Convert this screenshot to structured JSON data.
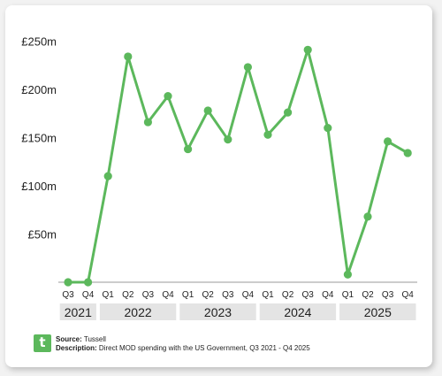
{
  "source_label": "Source:",
  "source": "Tussell",
  "description_label": "Description:",
  "description": "Direct MOD spending with the US Government, Q3 2021 - Q4 2025",
  "logo_letter": "t",
  "colors": {
    "line": "#5cb85c",
    "year_band": "#e4e4e4",
    "background": "#ffffff"
  },
  "chart_data": {
    "type": "line",
    "title": "",
    "xlabel": "",
    "ylabel": "",
    "ylim": [
      0,
      250
    ],
    "yticks": [
      50,
      100,
      150,
      200,
      250
    ],
    "ytick_labels": [
      "£50m",
      "£100m",
      "£150m",
      "£200m",
      "£250m"
    ],
    "grid": false,
    "x": [
      "Q3",
      "Q4",
      "Q1",
      "Q2",
      "Q3",
      "Q4",
      "Q1",
      "Q2",
      "Q3",
      "Q4",
      "Q1",
      "Q2",
      "Q3",
      "Q4",
      "Q1",
      "Q2",
      "Q3",
      "Q4"
    ],
    "years": [
      {
        "label": "2021",
        "quarters": 2
      },
      {
        "label": "2022",
        "quarters": 4
      },
      {
        "label": "2023",
        "quarters": 4
      },
      {
        "label": "2024",
        "quarters": 4
      },
      {
        "label": "2025",
        "quarters": 4
      }
    ],
    "series": [
      {
        "values": [
          0,
          0,
          110,
          234,
          166,
          193,
          138,
          178,
          148,
          223,
          153,
          176,
          241,
          160,
          8,
          68,
          146,
          134
        ]
      }
    ]
  }
}
